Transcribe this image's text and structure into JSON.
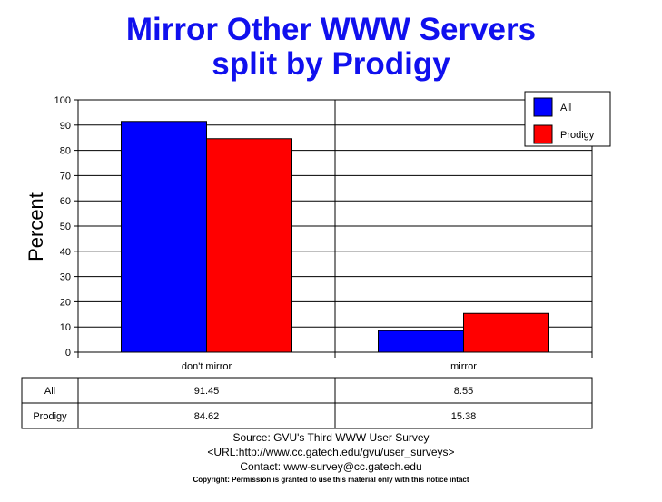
{
  "chart_data": {
    "type": "bar",
    "title": [
      "Mirror Other WWW Servers",
      "split by Prodigy"
    ],
    "ylabel": "Percent",
    "xlabel": "",
    "ylim": [
      0,
      100
    ],
    "yticks": [
      0,
      10,
      20,
      30,
      40,
      50,
      60,
      70,
      80,
      90,
      100
    ],
    "categories": [
      "don't mirror",
      "mirror"
    ],
    "series": [
      {
        "name": "All",
        "values": [
          91.45,
          8.55
        ],
        "color": "#0000ff",
        "labels": [
          "91.45",
          "8.55"
        ]
      },
      {
        "name": "Prodigy",
        "values": [
          84.62,
          15.38
        ],
        "color": "#ff0000",
        "labels": [
          "84.62",
          "15.38"
        ]
      }
    ],
    "legend_position": "top-right",
    "grid": true
  },
  "footer": {
    "source": "Source: GVU's Third WWW User Survey",
    "url": "<URL:http://www.cc.gatech.edu/gvu/user_surveys>",
    "contact": "Contact: www-survey@cc.gatech.edu",
    "copyright": "Copyright: Permission is granted to use this material only with this notice intact"
  }
}
